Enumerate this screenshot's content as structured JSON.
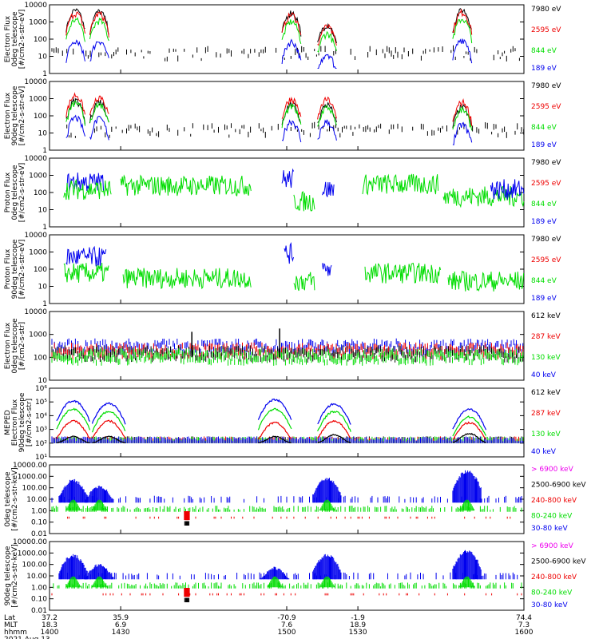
{
  "chart_data": {
    "type": "line",
    "colors": {
      "black": "#000000",
      "red": "#ee0000",
      "green": "#00dd00",
      "blue": "#0000ee",
      "magenta": "#ee00ee"
    },
    "x": {
      "range": [
        1400,
        1600
      ]
    },
    "panels": [
      {
        "ylabel": [
          "Electron Flux",
          "0deg telescope",
          "[#/cm2-s-str-eV]"
        ],
        "scale": "log",
        "ylim": [
          1,
          10000
        ],
        "tick_labels": [
          "1",
          "10",
          "100",
          "1000",
          "10000"
        ],
        "series": [
          {
            "name": "7980 eV",
            "color": "#000000"
          },
          {
            "name": "2595 eV",
            "color": "#ee0000"
          },
          {
            "name": "844 eV",
            "color": "#00dd00"
          },
          {
            "name": "189 eV",
            "color": "#0000ee"
          }
        ],
        "peaks": [
          {
            "t": 1411,
            "value": 5000
          },
          {
            "t": 1421,
            "value": 4500
          },
          {
            "t": 1502,
            "value": 4000
          },
          {
            "t": 1517,
            "value": 800
          },
          {
            "t": 1574,
            "value": 5500
          }
        ],
        "series_levels": [
          1.0,
          0.75,
          0.3,
          0.02
        ]
      },
      {
        "ylabel": [
          "Electron Flux",
          "90deg telescope",
          "[#/cm2-s-str-eV]"
        ],
        "scale": "log",
        "ylim": [
          1,
          10000
        ],
        "tick_labels": [
          "1",
          "10",
          "100",
          "1000",
          "10000"
        ],
        "series": [
          {
            "name": "7980 eV",
            "color": "#000000"
          },
          {
            "name": "2595 eV",
            "color": "#ee0000"
          },
          {
            "name": "844 eV",
            "color": "#00dd00"
          },
          {
            "name": "189 eV",
            "color": "#0000ee"
          }
        ],
        "peaks": [
          {
            "t": 1411,
            "value": 1800
          },
          {
            "t": 1421,
            "value": 1500
          },
          {
            "t": 1502,
            "value": 1100
          },
          {
            "t": 1517,
            "value": 1000
          },
          {
            "t": 1574,
            "value": 700
          }
        ],
        "series_levels": [
          0.5,
          1.0,
          0.35,
          0.05
        ]
      },
      {
        "ylabel": [
          "Proton Flux",
          "0deg telescope",
          "[#/cm2-s-str-eV]"
        ],
        "scale": "log",
        "ylim": [
          1,
          10000
        ],
        "tick_labels": [
          "1",
          "10",
          "100",
          "1000",
          "10000"
        ],
        "series": [
          {
            "name": "7980 eV",
            "color": "#000000"
          },
          {
            "name": "2595 eV",
            "color": "#ee0000"
          },
          {
            "name": "844 eV",
            "color": "#00dd00"
          },
          {
            "name": "189 eV",
            "color": "#0000ee"
          }
        ],
        "segments": [
          {
            "series": 3,
            "from": 1407,
            "to": 1423,
            "value": 400
          },
          {
            "series": 2,
            "from": 1406,
            "to": 1426,
            "value": 150
          },
          {
            "series": 2,
            "from": 1430,
            "to": 1485,
            "value": 250
          },
          {
            "series": 3,
            "from": 1498,
            "to": 1503,
            "value": 600
          },
          {
            "series": 2,
            "from": 1503,
            "to": 1512,
            "value": 30
          },
          {
            "series": 3,
            "from": 1515,
            "to": 1520,
            "value": 150
          },
          {
            "series": 2,
            "from": 1532,
            "to": 1564,
            "value": 300
          },
          {
            "series": 2,
            "from": 1566,
            "to": 1600,
            "value": 60
          },
          {
            "series": 3,
            "from": 1586,
            "to": 1600,
            "value": 150
          }
        ]
      },
      {
        "ylabel": [
          "Proton Flux",
          "90deg telescope",
          "[#/cm2-s-str-eV]"
        ],
        "scale": "log",
        "ylim": [
          1,
          10000
        ],
        "tick_labels": [
          "1",
          "10",
          "100",
          "1000",
          "10000"
        ],
        "series": [
          {
            "name": "7980 eV",
            "color": "#000000"
          },
          {
            "name": "2595 eV",
            "color": "#ee0000"
          },
          {
            "name": "844 eV",
            "color": "#00dd00"
          },
          {
            "name": "189 eV",
            "color": "#0000ee"
          }
        ],
        "segments": [
          {
            "series": 3,
            "from": 1407,
            "to": 1424,
            "value": 500
          },
          {
            "series": 2,
            "from": 1406,
            "to": 1425,
            "value": 60
          },
          {
            "series": 2,
            "from": 1431,
            "to": 1485,
            "value": 30
          },
          {
            "series": 3,
            "from": 1499,
            "to": 1503,
            "value": 800
          },
          {
            "series": 2,
            "from": 1503,
            "to": 1512,
            "value": 20
          },
          {
            "series": 3,
            "from": 1515,
            "to": 1519,
            "value": 100
          },
          {
            "series": 2,
            "from": 1533,
            "to": 1565,
            "value": 60
          },
          {
            "series": 2,
            "from": 1568,
            "to": 1600,
            "value": 20
          }
        ]
      },
      {
        "ylabel": [
          "Electron Flux",
          "0deg telescope",
          "[#/cm2-s-str]"
        ],
        "scale": "log",
        "ylim": [
          10,
          10000
        ],
        "tick_labels": [
          "10",
          "100",
          "1000",
          "10000"
        ],
        "series": [
          {
            "name": "612 keV",
            "color": "#000000"
          },
          {
            "name": "287 keV",
            "color": "#ee0000"
          },
          {
            "name": "130 keV",
            "color": "#00dd00"
          },
          {
            "name": "40 keV",
            "color": "#0000ee"
          }
        ],
        "bands": [
          {
            "series": 3,
            "value": 300
          },
          {
            "series": 1,
            "value": 200
          },
          {
            "series": 0,
            "value": 150
          },
          {
            "series": 2,
            "value": 110
          }
        ],
        "spikes": [
          {
            "t": 1460,
            "value": 1300
          },
          {
            "t": 1497,
            "value": 1800
          }
        ]
      },
      {
        "ylabel": [
          "MEPED",
          "Electron Flux",
          "90deg telescope",
          "[#/cm2-s-str]"
        ],
        "scale": "log",
        "ylim": [
          10,
          1000000
        ],
        "tick_labels": [
          "10¹",
          "10²",
          "10³",
          "10⁴",
          "10⁵",
          "10⁶"
        ],
        "series": [
          {
            "name": "612 keV",
            "color": "#000000"
          },
          {
            "name": "287 keV",
            "color": "#ee0000"
          },
          {
            "name": "130 keV",
            "color": "#00dd00"
          },
          {
            "name": "40 keV",
            "color": "#0000ee"
          }
        ],
        "humps": [
          {
            "t": 1410,
            "values": [
              200,
              4000,
              30000,
              120000
            ]
          },
          {
            "t": 1425,
            "values": [
              200,
              4000,
              20000,
              80000
            ]
          },
          {
            "t": 1495,
            "values": [
              200,
              3000,
              30000,
              150000
            ]
          },
          {
            "t": 1520,
            "values": [
              300,
              4000,
              20000,
              70000
            ]
          },
          {
            "t": 1577,
            "values": [
              400,
              3000,
              8000,
              30000
            ]
          }
        ]
      },
      {
        "ylabel": [
          "0deg telescope",
          "[#/cm2-s-str-keV]"
        ],
        "scale": "log",
        "ylim": [
          0.01,
          10000
        ],
        "tick_labels": [
          "0.01",
          "0.10",
          "1.00",
          "10.00",
          "100.00",
          "1000.00",
          "10000.00"
        ],
        "series": [
          {
            "name": "> 6900 keV",
            "color": "#ee00ee"
          },
          {
            "name": "2500-6900 keV",
            "color": "#000000"
          },
          {
            "name": "240-800 keV",
            "color": "#ee0000"
          },
          {
            "name": "80-240 keV",
            "color": "#00dd00"
          },
          {
            "name": "30-80 keV",
            "color": "#0000ee"
          }
        ],
        "humps": [
          {
            "series": 4,
            "t": 1410,
            "value": 500
          },
          {
            "series": 4,
            "t": 1421,
            "value": 150
          },
          {
            "series": 4,
            "t": 1517,
            "value": 700
          },
          {
            "series": 4,
            "t": 1576,
            "value": 3000
          }
        ]
      },
      {
        "ylabel": [
          "90deg telescope",
          "[#/cm2-s-str-keV]"
        ],
        "scale": "log",
        "ylim": [
          0.01,
          10000
        ],
        "tick_labels": [
          "0.01",
          "0.10",
          "1.00",
          "10.00",
          "100.00",
          "1000.00",
          "10000.00"
        ],
        "series": [
          {
            "name": "> 6900 keV",
            "color": "#ee00ee"
          },
          {
            "name": "2500-6900 keV",
            "color": "#000000"
          },
          {
            "name": "240-800 keV",
            "color": "#ee0000"
          },
          {
            "name": "80-240 keV",
            "color": "#00dd00"
          },
          {
            "name": "30-80 keV",
            "color": "#0000ee"
          }
        ],
        "humps": [
          {
            "series": 4,
            "t": 1410,
            "value": 700
          },
          {
            "series": 4,
            "t": 1421,
            "value": 100
          },
          {
            "series": 4,
            "t": 1495,
            "value": 50
          },
          {
            "series": 4,
            "t": 1517,
            "value": 700
          },
          {
            "series": 4,
            "t": 1576,
            "value": 1600
          }
        ]
      }
    ],
    "footer": {
      "row_labels": [
        "Lat",
        "MLT",
        "hhmm"
      ],
      "date": "2021 Aug 13",
      "ticks": [
        {
          "t": 1400,
          "lat": "37.2",
          "mlt": "18.3",
          "hhmm": "1400"
        },
        {
          "t": 1430,
          "lat": "35.9",
          "mlt": "6.9",
          "hhmm": "1430"
        },
        {
          "t": 1500,
          "lat": "-70.9",
          "mlt": "7.6",
          "hhmm": "1500"
        },
        {
          "t": 1530,
          "lat": "-1.9",
          "mlt": "18.9",
          "hhmm": "1530"
        },
        {
          "t": 1600,
          "lat": "74.4",
          "mlt": "7.3",
          "hhmm": "1600"
        }
      ]
    }
  }
}
